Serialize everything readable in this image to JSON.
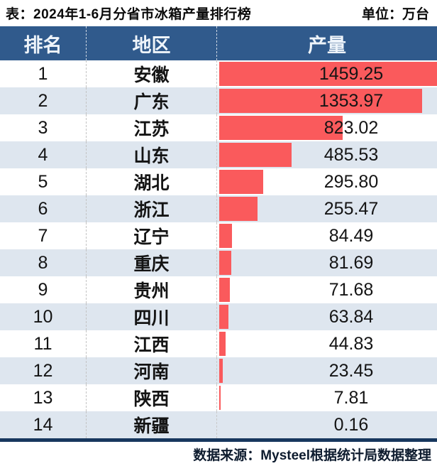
{
  "title": "表：2024年1-6月分省市冰箱产量排行榜",
  "unit_label": "单位：万台",
  "columns": {
    "rank": "排名",
    "region": "地区",
    "production": "产量"
  },
  "chart_data": {
    "type": "bar",
    "orientation": "horizontal",
    "title": "2024年1-6月分省市冰箱产量排行榜",
    "value_unit": "万台",
    "categories": [
      "安徽",
      "广东",
      "江苏",
      "山东",
      "湖北",
      "浙江",
      "辽宁",
      "重庆",
      "贵州",
      "四川",
      "江西",
      "河南",
      "陕西",
      "新疆"
    ],
    "values": [
      1459.25,
      1353.97,
      823.02,
      485.53,
      295.8,
      255.47,
      84.49,
      81.69,
      71.68,
      63.84,
      44.83,
      23.45,
      7.81,
      0.16
    ],
    "values_display": [
      "1459.25",
      "1353.97",
      "823.02",
      "485.53",
      "295.80",
      "255.47",
      "84.49",
      "81.69",
      "71.68",
      "63.84",
      "44.83",
      "23.45",
      "7.81",
      "0.16"
    ],
    "xlim": [
      0,
      1459.25
    ],
    "grid": false,
    "legend": false
  },
  "footer": "数据来源：Mysteel根据统计局数据整理",
  "colors": {
    "header_bg": "#305a8c",
    "bar": "#fa5a5c",
    "alt_row": "#dee6ef",
    "bottom_line": "#17375e"
  }
}
